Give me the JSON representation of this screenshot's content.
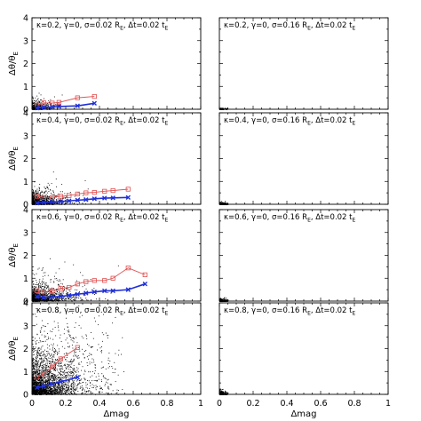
{
  "chart_data": {
    "type": "scatter",
    "xlabel": "Δmag",
    "ylabel_main": "Δθ/θ",
    "ylabel_sub": "E",
    "xlim": [
      0,
      1
    ],
    "ylim": [
      0,
      4
    ],
    "x_ticks": [
      "0",
      "0.2",
      "0.4",
      "0.6",
      "0.8",
      "1"
    ],
    "y_ticks": [
      "0",
      "1",
      "2",
      "3",
      "4"
    ],
    "colors": {
      "red": "#e05050",
      "blue": "#1f2fd8",
      "points": "#000000"
    },
    "panels": [
      {
        "row": 1,
        "col": 1,
        "label_main": "κ=0.2, γ=0, σ=0.02 R",
        "label_sub1": "E",
        "label_mid": ", Δt=0.02 t",
        "label_sub2": "E",
        "show_y_axis": true,
        "show_x_labels": false,
        "cloud": {
          "spread_x": 0.04,
          "spread_y": 0.2,
          "max_x": 0.18,
          "density": 420
        },
        "series": [
          {
            "color": "red",
            "x": [
              0.03,
              0.07,
              0.12,
              0.16,
              0.27,
              0.37
            ],
            "y": [
              0.18,
              0.28,
              0.27,
              0.3,
              0.5,
              0.56
            ]
          },
          {
            "color": "blue",
            "x": [
              0.03,
              0.07,
              0.12,
              0.16,
              0.27,
              0.37
            ],
            "y": [
              0.05,
              0.08,
              0.1,
              0.12,
              0.15,
              0.26
            ]
          }
        ]
      },
      {
        "row": 1,
        "col": 2,
        "label_main": "κ=0.2, γ=0, σ=0.16 R",
        "label_sub1": "E",
        "label_mid": ", Δt=0.02 t",
        "label_sub2": "E",
        "show_y_axis": false,
        "show_x_labels": false,
        "cloud": {
          "spread_x": 0.015,
          "spread_y": 0.03,
          "max_x": 0.05,
          "density": 160
        },
        "series": []
      },
      {
        "row": 2,
        "col": 1,
        "label_main": "κ=0.4, γ=0, σ=0.02 R",
        "label_sub1": "E",
        "label_mid": ", Δt=0.02 t",
        "label_sub2": "E",
        "show_y_axis": true,
        "show_x_labels": false,
        "cloud": {
          "spread_x": 0.06,
          "spread_y": 0.25,
          "max_x": 0.75,
          "density": 900
        },
        "series": [
          {
            "color": "red",
            "x": [
              0.03,
              0.07,
              0.12,
              0.17,
              0.22,
              0.27,
              0.32,
              0.37,
              0.43,
              0.48,
              0.57
            ],
            "y": [
              0.35,
              0.3,
              0.3,
              0.35,
              0.38,
              0.45,
              0.5,
              0.52,
              0.57,
              0.6,
              0.66
            ]
          },
          {
            "color": "blue",
            "x": [
              0.03,
              0.07,
              0.12,
              0.17,
              0.22,
              0.27,
              0.32,
              0.37,
              0.43,
              0.48,
              0.57
            ],
            "y": [
              0.05,
              0.08,
              0.1,
              0.12,
              0.15,
              0.18,
              0.2,
              0.24,
              0.27,
              0.28,
              0.3
            ]
          }
        ]
      },
      {
        "row": 2,
        "col": 2,
        "label_main": "κ=0.4, γ=0, σ=0.16 R",
        "label_sub1": "E",
        "label_mid": ", Δt=0.02 t",
        "label_sub2": "E",
        "show_y_axis": false,
        "show_x_labels": false,
        "cloud": {
          "spread_x": 0.015,
          "spread_y": 0.04,
          "max_x": 0.05,
          "density": 260
        },
        "series": []
      },
      {
        "row": 3,
        "col": 1,
        "label_main": "κ=0.6, γ=0, σ=0.02 R",
        "label_sub1": "E",
        "label_mid": ", Δt=0.02 t",
        "label_sub2": "E",
        "show_y_axis": true,
        "show_x_labels": false,
        "cloud": {
          "spread_x": 0.08,
          "spread_y": 0.35,
          "max_x": 0.85,
          "density": 1100
        },
        "series": [
          {
            "color": "red",
            "x": [
              0.03,
              0.07,
              0.12,
              0.17,
              0.22,
              0.27,
              0.32,
              0.37,
              0.43,
              0.48,
              0.57,
              0.67
            ],
            "y": [
              0.45,
              0.4,
              0.45,
              0.55,
              0.6,
              0.75,
              0.85,
              0.9,
              0.9,
              1.0,
              1.45,
              1.15
            ]
          },
          {
            "color": "blue",
            "x": [
              0.03,
              0.07,
              0.12,
              0.17,
              0.22,
              0.27,
              0.32,
              0.37,
              0.43,
              0.48,
              0.57,
              0.67
            ],
            "y": [
              0.2,
              0.15,
              0.18,
              0.2,
              0.25,
              0.3,
              0.35,
              0.4,
              0.45,
              0.45,
              0.5,
              0.75
            ]
          }
        ]
      },
      {
        "row": 3,
        "col": 2,
        "label_main": "κ=0.6, γ=0, σ=0.16 R",
        "label_sub1": "E",
        "label_mid": ", Δt=0.02 t",
        "label_sub2": "E",
        "show_y_axis": false,
        "show_x_labels": false,
        "cloud": {
          "spread_x": 0.015,
          "spread_y": 0.05,
          "max_x": 0.05,
          "density": 320
        },
        "series": []
      },
      {
        "row": 4,
        "col": 1,
        "label_main": "κ=0.8, γ=0, σ=0.02 R",
        "label_sub1": "E",
        "label_mid": ", Δt=0.02 t",
        "label_sub2": "E",
        "show_y_axis": true,
        "show_x_labels": true,
        "cloud": {
          "spread_x": 0.12,
          "spread_y": 0.9,
          "max_x": 0.55,
          "density": 2600
        },
        "series": [
          {
            "color": "red",
            "x": [
              0.03,
              0.07,
              0.12,
              0.17,
              0.27
            ],
            "y": [
              0.75,
              0.9,
              1.2,
              1.55,
              2.05
            ]
          },
          {
            "color": "blue",
            "x": [
              0.03,
              0.07,
              0.12,
              0.17,
              0.27
            ],
            "y": [
              0.3,
              0.35,
              0.45,
              0.55,
              0.75
            ]
          }
        ]
      },
      {
        "row": 4,
        "col": 2,
        "label_main": "κ=0.8, γ=0, σ=0.16 R",
        "label_sub1": "E",
        "label_mid": ", Δt=0.02 t",
        "label_sub2": "E",
        "show_y_axis": false,
        "show_x_labels": true,
        "cloud": {
          "spread_x": 0.015,
          "spread_y": 0.07,
          "max_x": 0.05,
          "density": 380
        },
        "series": []
      }
    ]
  }
}
